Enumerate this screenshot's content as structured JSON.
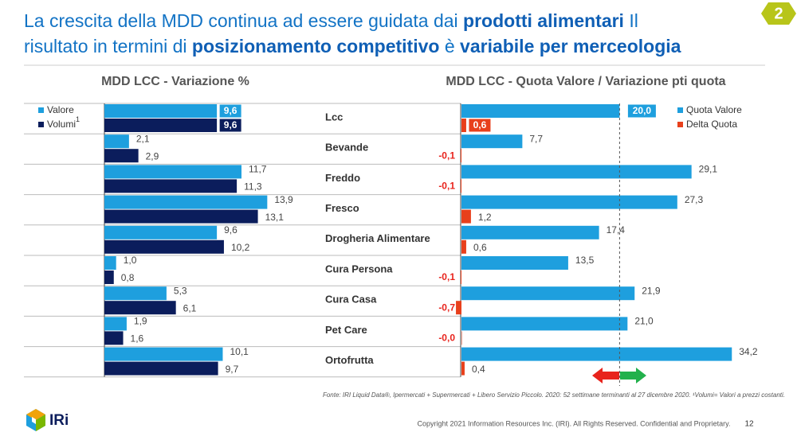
{
  "slide": {
    "title_lines": [
      [
        {
          "text": "La crescita della MDD continua ad essere guidata dai ",
          "bold": false
        },
        {
          "text": "prodotti alimentari",
          "bold": true
        },
        {
          "text": " Il",
          "bold": false
        }
      ],
      [
        {
          "text": "risultato in termini di ",
          "bold": false
        },
        {
          "text": "posizionamento competitivo",
          "bold": true
        },
        {
          "text": " è ",
          "bold": false
        },
        {
          "text": "variabile per merceologia",
          "bold": true
        }
      ]
    ],
    "badge": "2",
    "source": "Fonte: IRI Liquid Data®, Ipermercati + Supermercati + Libero Servizio Piccolo. 2020: 52 settimane terminanti al 27 dicembre 2020. ¹Volumi= Valori a prezzi costanti.",
    "copyright": "Copyright 2021 Information Resources Inc. (IRI). All Rights Reserved. Confidential and Proprietary.",
    "page": "12",
    "logo": "IRi"
  },
  "chart_data": [
    {
      "type": "hbar",
      "title": "MDD LCC - Variazione %",
      "categories": [
        "Lcc",
        "Bevande",
        "Freddo",
        "Fresco",
        "Drogheria Alimentare",
        "Cura Persona",
        "Cura Casa",
        "Pet Care",
        "Ortofrutta"
      ],
      "series": [
        {
          "name": "Valore",
          "color": "#1e9fde",
          "values": [
            9.6,
            2.1,
            11.7,
            13.9,
            9.6,
            1.0,
            5.3,
            1.9,
            10.1
          ],
          "value_labels": [
            "9,6",
            "2,1",
            "11,7",
            "13,9",
            "9,6",
            "1,0",
            "5,3",
            "1,9",
            "10,1"
          ]
        },
        {
          "name": "Volumi",
          "name_sup": "1",
          "color": "#0b1d5c",
          "values": [
            9.6,
            2.9,
            11.3,
            13.1,
            10.2,
            0.8,
            6.1,
            1.6,
            9.7
          ],
          "value_labels": [
            "9,6",
            "2,9",
            "11,3",
            "13,1",
            "10,2",
            "0,8",
            "6,1",
            "1,6",
            "9,7"
          ]
        }
      ]
    },
    {
      "type": "hbar",
      "title": "MDD LCC - Quota Valore / Variazione pti quota",
      "series": [
        {
          "name": "Quota Valore",
          "color": "#1e9fde",
          "values": [
            20.0,
            7.7,
            29.1,
            27.3,
            17.4,
            13.5,
            21.9,
            21.0,
            34.2
          ],
          "value_labels": [
            "20,0",
            "7,7",
            "29,1",
            "27,3",
            "17,4",
            "13,5",
            "21,9",
            "21,0",
            "34,2"
          ]
        },
        {
          "name": "Delta Quota",
          "color": "#e8401c",
          "values": [
            0.6,
            -0.1,
            -0.1,
            1.2,
            0.6,
            -0.1,
            -0.7,
            0,
            0.4
          ],
          "value_labels": [
            "0,6",
            "-0,1",
            "-0,1",
            "1,2",
            "0,6",
            "-0,1",
            "-0,7",
            "-0,0",
            "0,4"
          ]
        }
      ]
    }
  ]
}
